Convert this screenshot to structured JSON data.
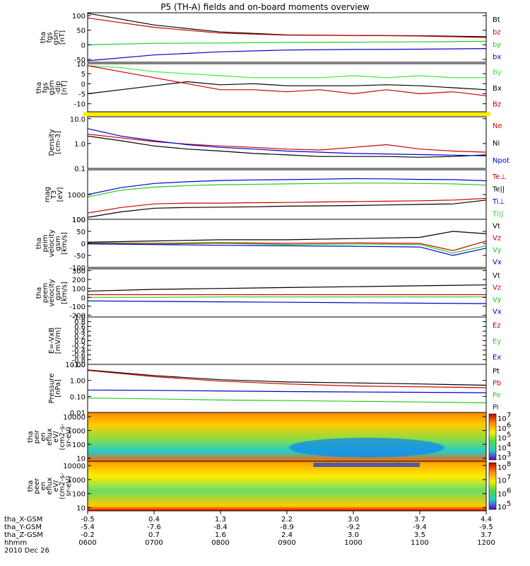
{
  "chart_data": {
    "type": "line",
    "title": "P5 (TH-A) fields and on-board moments overview",
    "colors": {
      "black": "#000000",
      "red": "#cc0000",
      "green": "#22cc22",
      "blue": "#0000cc",
      "yellow": "#ffee00",
      "lightgreen": "#33ee33"
    },
    "time_axis": {
      "row_labels": [
        "tha_X-GSM",
        "tha_Y-GSM",
        "tha_Z-GSM",
        "hhmm",
        "2010 Dec 26"
      ],
      "x_gsm": [
        "-0.5",
        "0.4",
        "1.3",
        "2.2",
        "3.0",
        "3.7",
        "4.4"
      ],
      "y_gsm": [
        "-5.4",
        "-7.6",
        "-8.4",
        "-8.9",
        "-9.2",
        "-9.4",
        "-9.5"
      ],
      "z_gsm": [
        "-0.2",
        "0.7",
        "1.6",
        "2.4",
        "3.0",
        "3.5",
        "3.7"
      ],
      "hhmm": [
        "0600",
        "0700",
        "0800",
        "0900",
        "1000",
        "1100",
        "1200"
      ]
    },
    "panels": [
      {
        "id": "fgs-gsm",
        "ylabel": [
          "tha",
          "fgs",
          "gsm",
          "[nT]"
        ],
        "ylim": [
          -60,
          110
        ],
        "scale": "linear",
        "ticks": [
          100,
          50,
          0,
          -50
        ],
        "series": [
          {
            "name": "Bt",
            "color": "black",
            "x": [
              6,
              7,
              8,
              9,
              10,
              11,
              12
            ],
            "y": [
              108,
              68,
              44,
              34,
              32,
              31,
              28
            ]
          },
          {
            "name": "bz",
            "color": "red",
            "x": [
              6,
              7,
              8,
              9,
              10,
              11,
              12
            ],
            "y": [
              92,
              60,
              40,
              33,
              32,
              30,
              25
            ]
          },
          {
            "name": "by",
            "color": "green",
            "x": [
              6,
              7,
              8,
              9,
              10,
              11,
              12
            ],
            "y": [
              0,
              5,
              6,
              8,
              9,
              10,
              12
            ]
          },
          {
            "name": "bx",
            "color": "blue",
            "x": [
              6,
              7,
              8,
              9,
              10,
              11,
              12
            ],
            "y": [
              -55,
              -35,
              -24,
              -18,
              -16,
              -15,
              -13
            ]
          }
        ]
      },
      {
        "id": "fgs-gsm-dip",
        "ylabel": [
          "tha",
          "fgs",
          "gsm",
          "-dip",
          "[nT]"
        ],
        "ylim": [
          -14,
          10
        ],
        "scale": "linear",
        "ticks": [
          10,
          5,
          0,
          -5,
          -10
        ],
        "series": [
          {
            "name": "By",
            "color": "lightgreen",
            "x": [
              6,
              6.5,
              7,
              7.5,
              8,
              8.5,
              9,
              9.5,
              10,
              10.5,
              11,
              11.5,
              12
            ],
            "y": [
              9,
              8,
              6,
              5,
              4,
              3,
              3,
              3,
              4,
              3,
              4,
              3,
              3
            ]
          },
          {
            "name": "Bx",
            "color": "black",
            "x": [
              6,
              6.5,
              7,
              7.5,
              8,
              8.5,
              9,
              9.5,
              10,
              10.5,
              11,
              11.5,
              12
            ],
            "y": [
              -5,
              -3,
              -1,
              1,
              -0.5,
              0,
              -1,
              -1,
              -1,
              -0.5,
              -1,
              -2,
              -3
            ]
          },
          {
            "name": "Bz",
            "color": "red",
            "x": [
              6,
              6.5,
              7,
              7.5,
              8,
              8.5,
              9,
              9.5,
              10,
              10.5,
              11,
              11.5,
              12
            ],
            "y": [
              9,
              6,
              3,
              0,
              -3,
              -3,
              -4,
              -3,
              -5,
              -3,
              -5,
              -4,
              -6
            ]
          }
        ]
      },
      {
        "id": "density",
        "ylabel": [
          "Density",
          "[cm-3]"
        ],
        "ylim": [
          0.1,
          12
        ],
        "scale": "log",
        "ticks": [
          10.0,
          1.0,
          0.1
        ],
        "tick_labels": [
          "10.0",
          "1.0",
          "0.1"
        ],
        "series": [
          {
            "name": "Ne",
            "color": "red",
            "x": [
              6,
              6.5,
              7,
              7.5,
              8,
              8.5,
              9,
              9.5,
              10,
              10.5,
              11,
              11.5,
              12
            ],
            "y": [
              2.4,
              1.7,
              1.2,
              0.95,
              0.8,
              0.7,
              0.6,
              0.55,
              0.7,
              0.9,
              0.6,
              0.5,
              0.45
            ]
          },
          {
            "name": "Ni",
            "color": "black",
            "x": [
              6,
              6.5,
              7,
              7.5,
              8,
              8.5,
              9,
              9.5,
              10,
              10.5,
              11,
              11.5,
              12
            ],
            "y": [
              2.0,
              1.3,
              0.8,
              0.6,
              0.5,
              0.4,
              0.35,
              0.3,
              0.3,
              0.3,
              0.28,
              0.3,
              0.35
            ]
          },
          {
            "name": "Npot",
            "color": "blue",
            "x": [
              6,
              6.5,
              7,
              7.5,
              8,
              8.5,
              9,
              9.5,
              10,
              10.5,
              11,
              11.5,
              12
            ],
            "y": [
              4.0,
              2.0,
              1.3,
              0.9,
              0.7,
              0.6,
              0.5,
              0.45,
              0.4,
              0.38,
              0.36,
              0.34,
              0.32
            ]
          }
        ]
      },
      {
        "id": "temperature",
        "ylabel": [
          "mag",
          "T3",
          "[eV]"
        ],
        "ylim": [
          100,
          10000
        ],
        "scale": "log",
        "ticks": [
          1000,
          100
        ],
        "tick_labels": [
          "1000",
          "100"
        ],
        "series": [
          {
            "name": "Te⊥",
            "color": "red",
            "x": [
              6,
              6.5,
              7,
              7.5,
              8,
              8.5,
              9,
              9.5,
              10,
              10.5,
              11,
              11.5,
              12
            ],
            "y": [
              180,
              300,
              420,
              450,
              450,
              470,
              480,
              500,
              520,
              540,
              560,
              600,
              700
            ]
          },
          {
            "name": "Te||",
            "color": "black",
            "x": [
              6,
              6.5,
              7,
              7.5,
              8,
              8.5,
              9,
              9.5,
              10,
              10.5,
              11,
              11.5,
              12
            ],
            "y": [
              120,
              200,
              280,
              300,
              310,
              320,
              340,
              350,
              360,
              380,
              400,
              420,
              600
            ]
          },
          {
            "name": "Ti⊥",
            "color": "blue",
            "x": [
              6,
              6.5,
              7,
              7.5,
              8,
              8.5,
              9,
              9.5,
              10,
              10.5,
              11,
              11.5,
              12
            ],
            "y": [
              1000,
              1900,
              2800,
              3300,
              3700,
              3900,
              4000,
              4200,
              4400,
              4300,
              4100,
              4000,
              3600
            ]
          },
          {
            "name": "Ti||",
            "color": "green",
            "x": [
              6,
              6.5,
              7,
              7.5,
              8,
              8.5,
              9,
              9.5,
              10,
              10.5,
              11,
              11.5,
              12
            ],
            "y": [
              800,
              1500,
              2000,
              2300,
              2500,
              2600,
              2700,
              2800,
              2900,
              2900,
              2800,
              2700,
              2400
            ]
          }
        ]
      },
      {
        "id": "peim-velocity",
        "ylabel": [
          "tha",
          "peim",
          "velocity",
          "gsm",
          "[km/s]"
        ],
        "ylim": [
          -100,
          100
        ],
        "scale": "linear",
        "ticks": [
          100,
          50,
          0,
          -50,
          -100
        ],
        "series": [
          {
            "name": "Vt",
            "color": "black",
            "x": [
              6,
              7,
              8,
              9,
              10,
              11,
              11.5,
              12
            ],
            "y": [
              5,
              10,
              15,
              15,
              20,
              25,
              50,
              40
            ]
          },
          {
            "name": "Vz",
            "color": "red",
            "x": [
              6,
              7,
              8,
              9,
              10,
              11,
              11.5,
              12
            ],
            "y": [
              2,
              0,
              3,
              0,
              2,
              0,
              -30,
              10
            ]
          },
          {
            "name": "Vy",
            "color": "green",
            "x": [
              6,
              7,
              8,
              9,
              10,
              11,
              11.5,
              12
            ],
            "y": [
              0,
              -3,
              0,
              -5,
              -3,
              -5,
              -40,
              -10
            ]
          },
          {
            "name": "Vx",
            "color": "blue",
            "x": [
              6,
              7,
              8,
              9,
              10,
              11,
              11.5,
              12
            ],
            "y": [
              -2,
              -5,
              -8,
              -10,
              -12,
              -15,
              -50,
              -20
            ]
          }
        ]
      },
      {
        "id": "peem-velocity",
        "ylabel": [
          "tha",
          "peem",
          "velocity",
          "gsm",
          "[km/s]"
        ],
        "ylim": [
          -220,
          320
        ],
        "scale": "linear",
        "ticks": [
          300,
          200,
          100,
          0,
          -100,
          -200
        ],
        "series": [
          {
            "name": "Vt",
            "color": "black",
            "x": [
              6,
              7,
              8,
              9,
              10,
              11,
              12
            ],
            "y": [
              70,
              90,
              100,
              110,
              120,
              130,
              140
            ]
          },
          {
            "name": "Vz",
            "color": "red",
            "x": [
              6,
              7,
              8,
              9,
              10,
              11,
              12
            ],
            "y": [
              30,
              30,
              30,
              30,
              30,
              30,
              30
            ]
          },
          {
            "name": "Vy",
            "color": "green",
            "x": [
              6,
              7,
              8,
              9,
              10,
              11,
              12
            ],
            "y": [
              0,
              0,
              5,
              5,
              5,
              5,
              5
            ]
          },
          {
            "name": "Vx",
            "color": "blue",
            "x": [
              6,
              7,
              8,
              9,
              10,
              11,
              12
            ],
            "y": [
              -40,
              -45,
              -50,
              -55,
              -60,
              -65,
              -70
            ]
          }
        ]
      },
      {
        "id": "e-field",
        "ylabel": [
          "E=-VxB",
          "[mV/m]"
        ],
        "ylim": [
          -1.0,
          1.0
        ],
        "scale": "linear",
        "ticks": [
          1.0,
          0.8,
          0.6,
          0.4,
          0.2,
          0.0,
          -0.2,
          -0.4,
          -0.6,
          -0.8,
          -1.0
        ],
        "tick_labels": [
          "1.0",
          "0.8",
          "0.6",
          "0.4",
          "0.2",
          "0.0",
          "-0.2",
          "-0.4",
          "-0.6",
          "-0.8",
          "-1.0"
        ],
        "series": [
          {
            "name": "Ez",
            "color": "red",
            "x": [],
            "y": []
          },
          {
            "name": "Ey",
            "color": "green",
            "x": [],
            "y": []
          },
          {
            "name": "Ex",
            "color": "blue",
            "x": [],
            "y": []
          }
        ]
      },
      {
        "id": "pressure",
        "ylabel": [
          "Pressure",
          "[nPa]"
        ],
        "ylim": [
          0.01,
          10
        ],
        "scale": "log",
        "ticks": [
          10.0,
          1.0,
          0.1,
          0.01
        ],
        "tick_labels": [
          "10.00",
          "1.00",
          "0.10",
          "0.01"
        ],
        "series": [
          {
            "name": "Pt",
            "color": "black",
            "x": [
              6,
              7,
              8,
              9,
              10,
              11,
              12
            ],
            "y": [
              4.5,
              2.0,
              1.1,
              0.8,
              0.7,
              0.6,
              0.5
            ]
          },
          {
            "name": "Pb",
            "color": "red",
            "x": [
              6,
              7,
              8,
              9,
              10,
              11,
              12
            ],
            "y": [
              4.2,
              1.7,
              0.9,
              0.6,
              0.45,
              0.4,
              0.35
            ]
          },
          {
            "name": "Pe",
            "color": "green",
            "x": [
              6,
              7,
              8,
              9,
              10,
              11,
              12
            ],
            "y": [
              0.08,
              0.07,
              0.06,
              0.055,
              0.05,
              0.045,
              0.04
            ]
          },
          {
            "name": "Pi",
            "color": "blue",
            "x": [
              6,
              7,
              8,
              9,
              10,
              11,
              12
            ],
            "y": [
              0.25,
              0.24,
              0.22,
              0.2,
              0.19,
              0.18,
              0.17
            ]
          }
        ]
      },
      {
        "id": "peir-spectrogram",
        "type": "heatmap",
        "ylabel": [
          "tha",
          "peir",
          "en",
          "eflux",
          "eV/",
          "(cm2-s-",
          "sr-eV)"
        ],
        "ylim": [
          6,
          20000
        ],
        "scale": "log",
        "ticks": [
          10000,
          1000,
          100,
          10
        ],
        "tick_labels": [
          "10000",
          "1000",
          "100",
          "10"
        ],
        "colorbar_ticks": [
          "10",
          "10",
          "10",
          "10",
          "10"
        ],
        "colorbar_exponents": [
          "7",
          "6",
          "5",
          "4",
          "3"
        ]
      },
      {
        "id": "peer-spectrogram",
        "type": "heatmap",
        "ylabel": [
          "tha",
          "peer",
          "en",
          "eflux",
          "eV/",
          "(cm2-s-",
          "sr-eV)"
        ],
        "ylim": [
          6,
          20000
        ],
        "scale": "log",
        "ticks": [
          10000,
          1000,
          100,
          10
        ],
        "tick_labels": [
          "10000",
          "1000",
          "100",
          "10"
        ],
        "colorbar_ticks": [
          "10",
          "10",
          "10",
          "10"
        ],
        "colorbar_exponents": [
          "8",
          "7",
          "6",
          "5"
        ]
      }
    ]
  }
}
